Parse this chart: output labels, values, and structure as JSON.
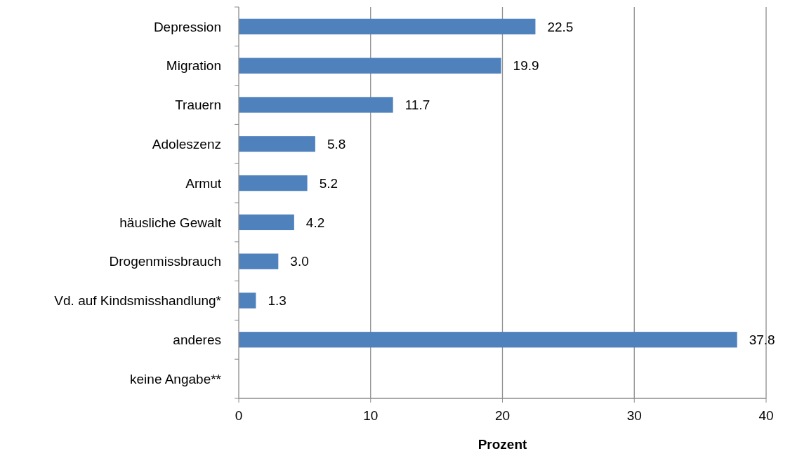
{
  "chart_data": {
    "type": "bar",
    "orientation": "horizontal",
    "xlabel": "Prozent",
    "categories": [
      "Depression",
      "Migration",
      "Trauern",
      "Adoleszenz",
      "Armut",
      "häusliche Gewalt",
      "Drogenmissbrauch",
      "Vd. auf Kindsmisshandlung*",
      "anderes",
      "keine Angabe**"
    ],
    "values": [
      22.5,
      19.9,
      11.7,
      5.8,
      5.2,
      4.2,
      3.0,
      1.3,
      37.8,
      null
    ],
    "value_labels": [
      "22.5",
      "19.9",
      "11.7",
      "5.8",
      "5.2",
      "4.2",
      "3.0",
      "1.3",
      "37.8",
      null
    ],
    "color": "#4f81bd",
    "xlim": [
      0,
      40
    ],
    "xticks": [
      0,
      10,
      20,
      30,
      40
    ],
    "grid": "x"
  }
}
